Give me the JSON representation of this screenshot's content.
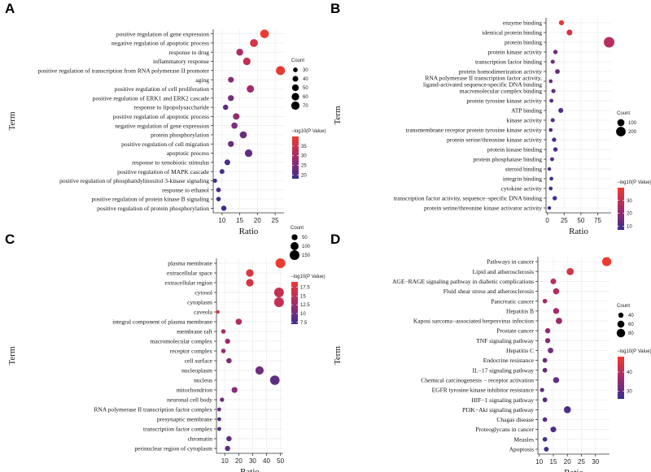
{
  "chart_data": [
    {
      "id": "A",
      "type": "scatter",
      "panel_label": "A",
      "xlabel": "Ratio",
      "ylabel": "Term",
      "xlim": [
        7.5,
        27.5
      ],
      "xticks": [
        10,
        15,
        20,
        25
      ],
      "terms": [
        "positive regulation of gene expression",
        "negative regulation of apoptotic process",
        "response to drug",
        "inflammatory response",
        "positive regulation of transcription from RNA polymerase II promoter",
        "aging",
        "positive regulation of cell proliferation",
        "positive regulation of ERK1 and ERK2 cascade",
        "response to lipopolysaccharide",
        "positive regulation of apoptotic process",
        "negative regulation of gene expression",
        "protein phosphorylation",
        "positive regulation of cell migration",
        "apoptotic process",
        "response to xenobiotic stimulus",
        "positive regulation of MAPK cascade",
        "positive regulation of phosphatidylinositol 3-kinase signaling",
        "response to ethanol",
        "positive regulation of protein kinase B signaling",
        "positive regulation of protein phosphorylation"
      ],
      "ratio": [
        22,
        19,
        15,
        17,
        26.5,
        12.5,
        18,
        12.5,
        11,
        14,
        13.5,
        16,
        12.5,
        17.5,
        11.5,
        10,
        8,
        9,
        9,
        10.5
      ],
      "count": [
        75,
        65,
        52,
        60,
        80,
        40,
        58,
        42,
        36,
        48,
        45,
        55,
        42,
        60,
        40,
        32,
        27,
        30,
        30,
        35
      ],
      "neglog10p": [
        40,
        36,
        30,
        33,
        39,
        26,
        29,
        24,
        22,
        27,
        25,
        23,
        23,
        22,
        20,
        19,
        18,
        20,
        19,
        18
      ],
      "legend": {
        "size_title": "Count",
        "size_values": [
          30,
          40,
          50,
          60,
          70
        ],
        "color_title": "−log10(P Value)",
        "color_ticks": [
          20,
          25,
          30,
          35
        ],
        "color_range": [
          18,
          40
        ]
      }
    },
    {
      "id": "B",
      "type": "scatter",
      "panel_label": "B",
      "xlabel": "Ratio",
      "ylabel": "Term",
      "xlim": [
        -2,
        95
      ],
      "xticks": [
        0,
        25,
        50,
        75
      ],
      "terms": [
        "enzyme binding",
        "identical protein binding",
        "protein binding",
        "protein kinase activity",
        "transcription factor binding",
        "protein homodimerization activity",
        "RNA polymerase II transcription factor activity,\nligand-activated sequence-specific DNA binding",
        "macromolecular complex binding",
        "protein tyrosine kinase activity",
        "ATP binding",
        "kinase activity",
        "transmembrane receptor protein tyrosine kinase activity",
        "protein serine/threonine kinase activity",
        "protein kinase binding",
        "protein phosphatase binding",
        "steroid binding",
        "integrin binding",
        "cytokine activity",
        "transcription factor activity, sequence−specific DNA binding",
        "protein serine/threonine kinase activator activity"
      ],
      "ratio": [
        21,
        33,
        92,
        12,
        8,
        15,
        5,
        9,
        6,
        20,
        8,
        5,
        10,
        12,
        7,
        3,
        6,
        5,
        11,
        3
      ],
      "count": [
        40,
        60,
        250,
        25,
        18,
        32,
        12,
        20,
        15,
        38,
        18,
        12,
        22,
        25,
        15,
        8,
        13,
        12,
        24,
        8
      ],
      "neglog10p": [
        38,
        33,
        28,
        16,
        15,
        14,
        14,
        13,
        12,
        11,
        11,
        11,
        10,
        10,
        10,
        10,
        9,
        9,
        8,
        8
      ],
      "legend": {
        "size_title": "Count",
        "size_values": [
          100,
          200
        ],
        "color_title": "−log10(P Value)",
        "color_ticks": [
          10,
          20,
          30
        ],
        "color_range": [
          7,
          40
        ]
      }
    },
    {
      "id": "C",
      "type": "scatter",
      "panel_label": "C",
      "xlabel": "Ratio",
      "ylabel": "Term",
      "xlim": [
        4,
        52
      ],
      "xticks": [
        10,
        20,
        30,
        40,
        50
      ],
      "terms": [
        "plasma membrane",
        "extracellular space",
        "extracellular region",
        "cytosol",
        "cytoplasm",
        "caveola",
        "integral component of plasma membrane",
        "membrane raft",
        "macromolecular complex",
        "receptor complex",
        "cell surface",
        "nucleoplasm",
        "nucleus",
        "mitochondrion",
        "neuronal cell body",
        "RNA polymerase II transcription factor complex",
        "presynaptic membrane",
        "transcription factor complex",
        "chromatin",
        "perinuclear region of cytoplasm"
      ],
      "ratio": [
        50,
        28,
        28,
        49,
        49,
        5,
        20,
        9,
        12,
        9,
        13,
        35,
        46,
        17,
        8,
        6,
        6,
        6,
        13,
        12
      ],
      "count": [
        150,
        85,
        85,
        150,
        150,
        12,
        55,
        25,
        35,
        25,
        38,
        105,
        140,
        50,
        22,
        16,
        16,
        16,
        38,
        36
      ],
      "neglog10p": [
        19,
        17.5,
        17,
        15.5,
        15.5,
        17,
        14,
        13.5,
        12.5,
        12,
        11,
        10,
        9,
        11.5,
        10,
        9.5,
        8.5,
        8.5,
        9,
        9
      ],
      "legend": {
        "size_title": "Count",
        "size_values": [
          50,
          100,
          150
        ],
        "color_title": "−log10(P Value)",
        "color_ticks": [
          7.5,
          10.0,
          12.5,
          15.0,
          17.5
        ],
        "color_range": [
          7,
          19
        ]
      }
    },
    {
      "id": "D",
      "type": "scatter",
      "panel_label": "D",
      "xlabel": "Ratio",
      "ylabel": "Term",
      "xlim": [
        9.5,
        35
      ],
      "xticks": [
        10,
        15,
        20,
        25,
        30
      ],
      "terms": [
        "Pathways in cancer",
        "Lipid and atherosclerosis",
        "AGE−RAGE signaling pathway in diabetic complications",
        "Fluid shear stress and atherosclerosis",
        "Pancreatic cancer",
        "Hepatitis B",
        "Kaposi sarcoma−associated herpesvirus infection",
        "Prostate cancer",
        "TNF signaling pathway",
        "Hepatitis C",
        "Endocrine resistance",
        "IL−17 signaling pathway",
        "Chemical carcinogenesis − receptor activation",
        "EGFR tyrosine kinase inhibitor resistance",
        "HIF−1 signaling pathway",
        "PI3K−Akt signaling pathway",
        "Chagas disease",
        "Proteoglycans in cancer",
        "Measles",
        "Apoptosis"
      ],
      "ratio": [
        34,
        21,
        15,
        16,
        12,
        16,
        17,
        13,
        13,
        14,
        12,
        12,
        16,
        11,
        12,
        20,
        12,
        15,
        12,
        12.5
      ],
      "count": [
        90,
        62,
        45,
        50,
        35,
        48,
        52,
        40,
        40,
        44,
        36,
        36,
        48,
        32,
        36,
        60,
        35,
        46,
        35,
        37
      ],
      "neglog10p": [
        48,
        44,
        40,
        39,
        37,
        37,
        36,
        35,
        34,
        32,
        31,
        31,
        30,
        30,
        29,
        28,
        29,
        28,
        27,
        27
      ],
      "legend": {
        "size_title": "Count",
        "size_values": [
          40,
          60,
          80
        ],
        "color_title": "−log10(P Value)",
        "color_ticks": [
          30,
          40
        ],
        "color_range": [
          26,
          48
        ]
      }
    }
  ]
}
